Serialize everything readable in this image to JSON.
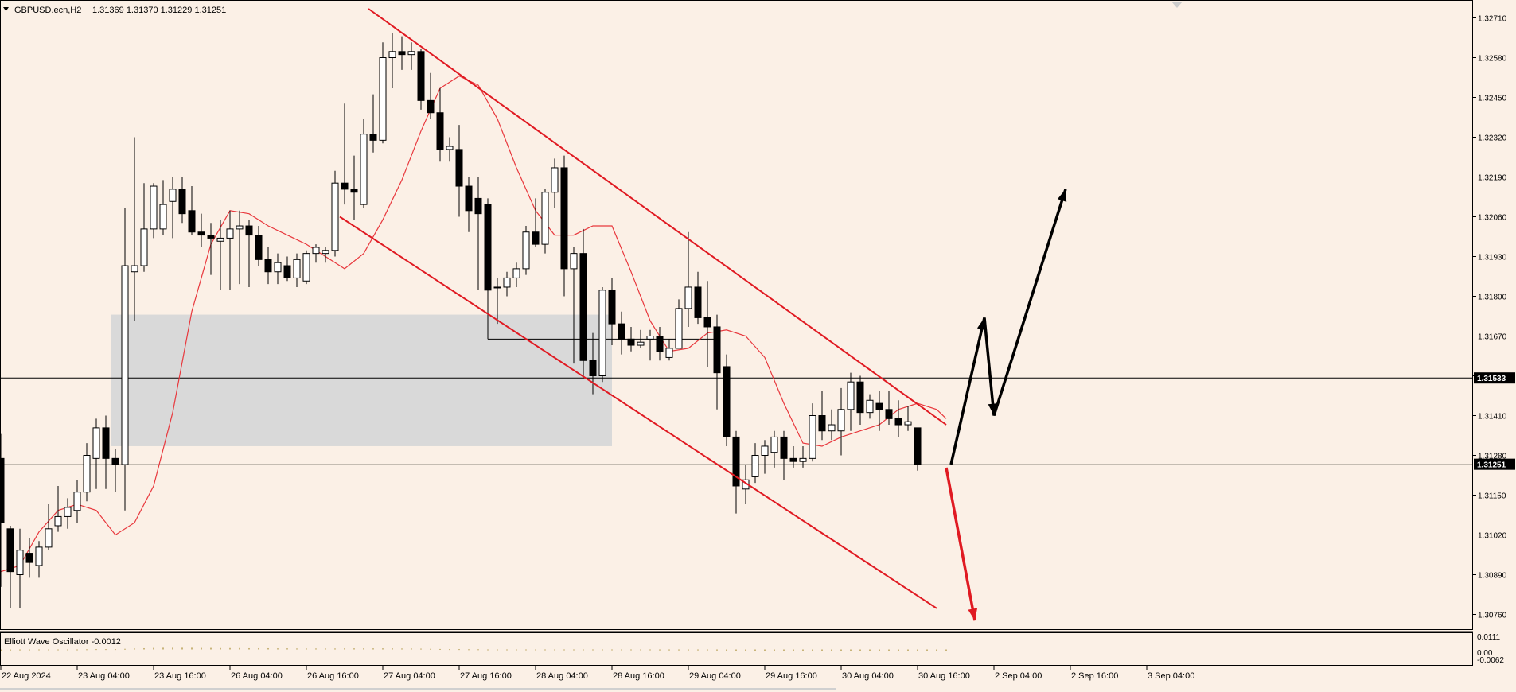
{
  "header": {
    "symbol": "GBPUSD.ecn,H2",
    "ohlc": "1.31369 1.31370 1.31229 1.31251"
  },
  "indicator": {
    "label": "Elliott Wave Oscillator -0.0012",
    "scale_labels": [
      "0.0111",
      "0.00",
      "-0.0062"
    ]
  },
  "colors": {
    "background": "#fbf0e6",
    "bull_candle": "#ffffff",
    "bear_candle": "#000000",
    "moving_average": "#e8383d",
    "channel": "#e01a22",
    "forecast_up": "#000000",
    "forecast_down": "#e01a22",
    "zone": "#d9d9d9",
    "oscillator": "#c8b47a"
  },
  "chart_data": {
    "type": "candlestick",
    "title": "GBPUSD.ecn,H2",
    "y_axis": {
      "ylim": [
        1.3068,
        1.3277
      ],
      "tick_labels": [
        "1.32710",
        "1.32580",
        "1.32450",
        "1.32320",
        "1.32190",
        "1.32060",
        "1.31930",
        "1.31800",
        "1.31670",
        "1.31540",
        "1.31410",
        "1.31280",
        "1.31150",
        "1.31020",
        "1.30890",
        "1.30760"
      ],
      "current_price_label": "1.31251",
      "horizontal_line_label": "1.31533"
    },
    "x_axis": {
      "tick_labels": [
        "22 Aug 2024",
        "23 Aug 04:00",
        "23 Aug 16:00",
        "26 Aug 04:00",
        "26 Aug 16:00",
        "27 Aug 04:00",
        "27 Aug 16:00",
        "28 Aug 04:00",
        "28 Aug 16:00",
        "29 Aug 04:00",
        "29 Aug 16:00",
        "30 Aug 04:00",
        "30 Aug 16:00",
        "2 Sep 04:00",
        "2 Sep 16:00",
        "3 Sep 04:00"
      ]
    },
    "candles": [
      {
        "o": 1.3127,
        "h": 1.3135,
        "l": 1.3085,
        "c": 1.3106
      },
      {
        "o": 1.3104,
        "h": 1.3105,
        "l": 1.3078,
        "c": 1.309
      },
      {
        "o": 1.3089,
        "h": 1.3104,
        "l": 1.3078,
        "c": 1.3097
      },
      {
        "o": 1.3096,
        "h": 1.3101,
        "l": 1.3088,
        "c": 1.3093
      },
      {
        "o": 1.3092,
        "h": 1.31,
        "l": 1.3088,
        "c": 1.3098
      },
      {
        "o": 1.3098,
        "h": 1.3112,
        "l": 1.3097,
        "c": 1.3104
      },
      {
        "o": 1.3105,
        "h": 1.3118,
        "l": 1.3103,
        "c": 1.3108
      },
      {
        "o": 1.3108,
        "h": 1.3114,
        "l": 1.3104,
        "c": 1.3111
      },
      {
        "o": 1.311,
        "h": 1.312,
        "l": 1.3106,
        "c": 1.3116
      },
      {
        "o": 1.3116,
        "h": 1.3132,
        "l": 1.3113,
        "c": 1.3128
      },
      {
        "o": 1.3127,
        "h": 1.314,
        "l": 1.3117,
        "c": 1.3137
      },
      {
        "o": 1.3137,
        "h": 1.3141,
        "l": 1.3117,
        "c": 1.3127
      },
      {
        "o": 1.3127,
        "h": 1.313,
        "l": 1.3116,
        "c": 1.3125
      },
      {
        "o": 1.3125,
        "h": 1.3209,
        "l": 1.311,
        "c": 1.319
      },
      {
        "o": 1.3188,
        "h": 1.3232,
        "l": 1.3172,
        "c": 1.319
      },
      {
        "o": 1.319,
        "h": 1.3217,
        "l": 1.3188,
        "c": 1.3202
      },
      {
        "o": 1.3202,
        "h": 1.3217,
        "l": 1.3199,
        "c": 1.3216
      },
      {
        "o": 1.3202,
        "h": 1.3218,
        "l": 1.32,
        "c": 1.321
      },
      {
        "o": 1.3211,
        "h": 1.3219,
        "l": 1.3199,
        "c": 1.3215
      },
      {
        "o": 1.3215,
        "h": 1.3219,
        "l": 1.3204,
        "c": 1.3207
      },
      {
        "o": 1.3208,
        "h": 1.3216,
        "l": 1.32,
        "c": 1.3201
      },
      {
        "o": 1.3201,
        "h": 1.3207,
        "l": 1.3196,
        "c": 1.32
      },
      {
        "o": 1.32,
        "h": 1.3204,
        "l": 1.3187,
        "c": 1.3199
      },
      {
        "o": 1.3198,
        "h": 1.3205,
        "l": 1.3182,
        "c": 1.3199
      },
      {
        "o": 1.3199,
        "h": 1.3208,
        "l": 1.3182,
        "c": 1.3202
      },
      {
        "o": 1.3202,
        "h": 1.3208,
        "l": 1.3184,
        "c": 1.3203
      },
      {
        "o": 1.3203,
        "h": 1.3205,
        "l": 1.3183,
        "c": 1.32
      },
      {
        "o": 1.32,
        "h": 1.3203,
        "l": 1.319,
        "c": 1.3192
      },
      {
        "o": 1.3192,
        "h": 1.3196,
        "l": 1.3184,
        "c": 1.3188
      },
      {
        "o": 1.3188,
        "h": 1.3194,
        "l": 1.3184,
        "c": 1.3191
      },
      {
        "o": 1.319,
        "h": 1.3193,
        "l": 1.3185,
        "c": 1.3186
      },
      {
        "o": 1.3186,
        "h": 1.3194,
        "l": 1.3183,
        "c": 1.3192
      },
      {
        "o": 1.3185,
        "h": 1.3195,
        "l": 1.3184,
        "c": 1.3194
      },
      {
        "o": 1.3194,
        "h": 1.3197,
        "l": 1.3191,
        "c": 1.3196
      },
      {
        "o": 1.3194,
        "h": 1.3196,
        "l": 1.3191,
        "c": 1.3195
      },
      {
        "o": 1.3195,
        "h": 1.3221,
        "l": 1.3193,
        "c": 1.3217
      },
      {
        "o": 1.3217,
        "h": 1.3243,
        "l": 1.321,
        "c": 1.3215
      },
      {
        "o": 1.3215,
        "h": 1.3226,
        "l": 1.3205,
        "c": 1.3214
      },
      {
        "o": 1.321,
        "h": 1.3238,
        "l": 1.3209,
        "c": 1.3233
      },
      {
        "o": 1.3233,
        "h": 1.3246,
        "l": 1.3227,
        "c": 1.3231
      },
      {
        "o": 1.3231,
        "h": 1.3263,
        "l": 1.323,
        "c": 1.3258
      },
      {
        "o": 1.3258,
        "h": 1.3266,
        "l": 1.3248,
        "c": 1.326
      },
      {
        "o": 1.326,
        "h": 1.3265,
        "l": 1.3254,
        "c": 1.3259
      },
      {
        "o": 1.3259,
        "h": 1.3263,
        "l": 1.3254,
        "c": 1.326
      },
      {
        "o": 1.326,
        "h": 1.3261,
        "l": 1.3241,
        "c": 1.3244
      },
      {
        "o": 1.3244,
        "h": 1.3253,
        "l": 1.3238,
        "c": 1.324
      },
      {
        "o": 1.324,
        "h": 1.3248,
        "l": 1.3224,
        "c": 1.3228
      },
      {
        "o": 1.3228,
        "h": 1.3232,
        "l": 1.3224,
        "c": 1.3229
      },
      {
        "o": 1.3228,
        "h": 1.3236,
        "l": 1.3206,
        "c": 1.3216
      },
      {
        "o": 1.3216,
        "h": 1.3219,
        "l": 1.3201,
        "c": 1.3208
      },
      {
        "o": 1.3212,
        "h": 1.3219,
        "l": 1.3182,
        "c": 1.3207
      },
      {
        "o": 1.321,
        "h": 1.3212,
        "l": 1.3166,
        "c": 1.3182
      },
      {
        "o": 1.3183,
        "h": 1.3186,
        "l": 1.3171,
        "c": 1.3183
      },
      {
        "o": 1.3183,
        "h": 1.3188,
        "l": 1.318,
        "c": 1.3186
      },
      {
        "o": 1.3186,
        "h": 1.3191,
        "l": 1.3183,
        "c": 1.3189
      },
      {
        "o": 1.3189,
        "h": 1.3203,
        "l": 1.3187,
        "c": 1.3201
      },
      {
        "o": 1.3201,
        "h": 1.3212,
        "l": 1.3196,
        "c": 1.3197
      },
      {
        "o": 1.3197,
        "h": 1.3215,
        "l": 1.3194,
        "c": 1.3214
      },
      {
        "o": 1.3214,
        "h": 1.3225,
        "l": 1.3209,
        "c": 1.3222
      },
      {
        "o": 1.3222,
        "h": 1.3226,
        "l": 1.318,
        "c": 1.3189
      },
      {
        "o": 1.3189,
        "h": 1.3196,
        "l": 1.3158,
        "c": 1.3194
      },
      {
        "o": 1.3194,
        "h": 1.3202,
        "l": 1.3154,
        "c": 1.3159
      },
      {
        "o": 1.3159,
        "h": 1.3168,
        "l": 1.3148,
        "c": 1.3154
      },
      {
        "o": 1.3154,
        "h": 1.3183,
        "l": 1.3152,
        "c": 1.3182
      },
      {
        "o": 1.3182,
        "h": 1.3186,
        "l": 1.3164,
        "c": 1.3171
      },
      {
        "o": 1.3171,
        "h": 1.3175,
        "l": 1.3161,
        "c": 1.3166
      },
      {
        "o": 1.3166,
        "h": 1.317,
        "l": 1.3162,
        "c": 1.3164
      },
      {
        "o": 1.3164,
        "h": 1.3169,
        "l": 1.3163,
        "c": 1.3165
      },
      {
        "o": 1.3166,
        "h": 1.3169,
        "l": 1.3159,
        "c": 1.3167
      },
      {
        "o": 1.3167,
        "h": 1.317,
        "l": 1.3159,
        "c": 1.3162
      },
      {
        "o": 1.316,
        "h": 1.3166,
        "l": 1.3159,
        "c": 1.3163
      },
      {
        "o": 1.3163,
        "h": 1.3179,
        "l": 1.3163,
        "c": 1.3176
      },
      {
        "o": 1.3176,
        "h": 1.3201,
        "l": 1.317,
        "c": 1.3183
      },
      {
        "o": 1.3183,
        "h": 1.3188,
        "l": 1.3171,
        "c": 1.3173
      },
      {
        "o": 1.3173,
        "h": 1.3185,
        "l": 1.3157,
        "c": 1.317
      },
      {
        "o": 1.317,
        "h": 1.3174,
        "l": 1.3143,
        "c": 1.3155
      },
      {
        "o": 1.3157,
        "h": 1.3161,
        "l": 1.3131,
        "c": 1.3134
      },
      {
        "o": 1.3134,
        "h": 1.3136,
        "l": 1.3109,
        "c": 1.3118
      },
      {
        "o": 1.3117,
        "h": 1.3125,
        "l": 1.3112,
        "c": 1.312
      },
      {
        "o": 1.3121,
        "h": 1.3132,
        "l": 1.3119,
        "c": 1.3128
      },
      {
        "o": 1.3128,
        "h": 1.3133,
        "l": 1.3122,
        "c": 1.3131
      },
      {
        "o": 1.3129,
        "h": 1.3136,
        "l": 1.3124,
        "c": 1.3134
      },
      {
        "o": 1.3134,
        "h": 1.3136,
        "l": 1.312,
        "c": 1.3127
      },
      {
        "o": 1.3127,
        "h": 1.3131,
        "l": 1.3124,
        "c": 1.3126
      },
      {
        "o": 1.3126,
        "h": 1.3131,
        "l": 1.3124,
        "c": 1.3127
      },
      {
        "o": 1.3127,
        "h": 1.3145,
        "l": 1.3126,
        "c": 1.3141
      },
      {
        "o": 1.3141,
        "h": 1.3149,
        "l": 1.3133,
        "c": 1.3136
      },
      {
        "o": 1.3136,
        "h": 1.3143,
        "l": 1.3133,
        "c": 1.3138
      },
      {
        "o": 1.3136,
        "h": 1.315,
        "l": 1.3128,
        "c": 1.3143
      },
      {
        "o": 1.3143,
        "h": 1.3155,
        "l": 1.3136,
        "c": 1.3152
      },
      {
        "o": 1.3152,
        "h": 1.3154,
        "l": 1.3138,
        "c": 1.3142
      },
      {
        "o": 1.3142,
        "h": 1.3148,
        "l": 1.314,
        "c": 1.3146
      },
      {
        "o": 1.3145,
        "h": 1.3149,
        "l": 1.3136,
        "c": 1.3143
      },
      {
        "o": 1.3143,
        "h": 1.3149,
        "l": 1.3138,
        "c": 1.314
      },
      {
        "o": 1.314,
        "h": 1.3146,
        "l": 1.3134,
        "c": 1.3138
      },
      {
        "o": 1.3138,
        "h": 1.3144,
        "l": 1.3136,
        "c": 1.3139
      },
      {
        "o": 1.3137,
        "h": 1.3137,
        "l": 1.3123,
        "c": 1.3125
      }
    ],
    "moving_average": [
      {
        "i": 0,
        "v": 1.309
      },
      {
        "i": 2,
        "v": 1.3092
      },
      {
        "i": 4,
        "v": 1.3103
      },
      {
        "i": 6,
        "v": 1.311
      },
      {
        "i": 8,
        "v": 1.3112
      },
      {
        "i": 10,
        "v": 1.311
      },
      {
        "i": 12,
        "v": 1.3102
      },
      {
        "i": 14,
        "v": 1.3106
      },
      {
        "i": 16,
        "v": 1.3118
      },
      {
        "i": 18,
        "v": 1.3142
      },
      {
        "i": 20,
        "v": 1.3175
      },
      {
        "i": 22,
        "v": 1.3197
      },
      {
        "i": 24,
        "v": 1.3208
      },
      {
        "i": 26,
        "v": 1.3207
      },
      {
        "i": 28,
        "v": 1.3203
      },
      {
        "i": 30,
        "v": 1.32
      },
      {
        "i": 32,
        "v": 1.3197
      },
      {
        "i": 34,
        "v": 1.3193
      },
      {
        "i": 36,
        "v": 1.3189
      },
      {
        "i": 38,
        "v": 1.3194
      },
      {
        "i": 40,
        "v": 1.3205
      },
      {
        "i": 42,
        "v": 1.3218
      },
      {
        "i": 44,
        "v": 1.3234
      },
      {
        "i": 46,
        "v": 1.3248
      },
      {
        "i": 48,
        "v": 1.3252
      },
      {
        "i": 50,
        "v": 1.3249
      },
      {
        "i": 52,
        "v": 1.3238
      },
      {
        "i": 54,
        "v": 1.3222
      },
      {
        "i": 56,
        "v": 1.3208
      },
      {
        "i": 58,
        "v": 1.32
      },
      {
        "i": 60,
        "v": 1.32
      },
      {
        "i": 62,
        "v": 1.3203
      },
      {
        "i": 64,
        "v": 1.3203
      },
      {
        "i": 66,
        "v": 1.3188
      },
      {
        "i": 68,
        "v": 1.3172
      },
      {
        "i": 70,
        "v": 1.3162
      },
      {
        "i": 72,
        "v": 1.3163
      },
      {
        "i": 74,
        "v": 1.3168
      },
      {
        "i": 76,
        "v": 1.3169
      },
      {
        "i": 78,
        "v": 1.3167
      },
      {
        "i": 80,
        "v": 1.316
      },
      {
        "i": 82,
        "v": 1.3145
      },
      {
        "i": 84,
        "v": 1.3132
      },
      {
        "i": 86,
        "v": 1.3131
      },
      {
        "i": 88,
        "v": 1.3134
      },
      {
        "i": 90,
        "v": 1.3136
      },
      {
        "i": 92,
        "v": 1.3138
      },
      {
        "i": 94,
        "v": 1.3143
      },
      {
        "i": 96,
        "v": 1.3145
      },
      {
        "i": 98,
        "v": 1.3143
      },
      {
        "i": 99,
        "v": 1.314
      }
    ],
    "channel_upper": [
      {
        "i": 38.5,
        "v": 1.3274
      },
      {
        "i": 99,
        "v": 1.3138
      }
    ],
    "channel_lower": [
      {
        "i": 35.5,
        "v": 1.3206
      },
      {
        "i": 98,
        "v": 1.3078
      }
    ],
    "horizontal_lines": [
      1.31533,
      1.31251
    ],
    "support_segment": {
      "from": 51,
      "to": 75,
      "v": 1.3166
    },
    "zone": {
      "from": 11.5,
      "to": 64,
      "top": 1.3174,
      "bottom": 1.3131
    },
    "forecast_up": [
      {
        "i": 99.5,
        "v": 1.3125
      },
      {
        "i": 103,
        "v": 1.3173
      },
      {
        "i": 104,
        "v": 1.3141
      },
      {
        "i": 111.5,
        "v": 1.3215
      }
    ],
    "forecast_down": [
      {
        "i": 99,
        "v": 1.3124
      },
      {
        "i": 102,
        "v": 1.3074
      }
    ],
    "oscillator": [
      -0.0008,
      -0.0007,
      -0.0006,
      -0.0006,
      -0.0005,
      -0.0004,
      -0.0003,
      -0.0002,
      -0.0001,
      0.0001,
      0.0002,
      0.0002,
      0.0002,
      0.0004,
      0.0006,
      0.0008,
      0.001,
      0.0011,
      0.0011,
      0.0011,
      0.0011,
      0.001,
      0.001,
      0.0009,
      0.0009,
      0.0009,
      0.0008,
      0.0008,
      0.0008,
      0.0007,
      0.0007,
      0.0006,
      0.0006,
      0.0006,
      0.0006,
      0.0006,
      0.0007,
      0.0007,
      0.0007,
      0.0007,
      0.0007,
      0.0007,
      0.0006,
      0.0006,
      0.0005,
      0.0004,
      0.0003,
      0.0002,
      0.0002,
      0.0001,
      0.0001,
      0.0,
      -0.0001,
      -0.0001,
      -0.0001,
      -0.0002,
      -0.0002,
      -0.0002,
      -0.0002,
      -0.0003,
      -0.0003,
      -0.0004,
      -0.0004,
      -0.0004,
      -0.0004,
      -0.0005,
      -0.0005,
      -0.0005,
      -0.0005,
      -0.0006,
      -0.0006,
      -0.0006,
      -0.0006,
      -0.0006,
      -0.0006,
      -0.0007,
      -0.0008,
      -0.0009,
      -0.001,
      -0.0011,
      -0.0011,
      -0.0012,
      -0.0012,
      -0.0012,
      -0.0012,
      -0.0012,
      -0.0012,
      -0.0012,
      -0.0012,
      -0.0012,
      -0.0012,
      -0.0012,
      -0.0012,
      -0.0012,
      -0.0012,
      -0.0012,
      -0.0012,
      -0.0012,
      -0.0012,
      -0.0012
    ]
  }
}
